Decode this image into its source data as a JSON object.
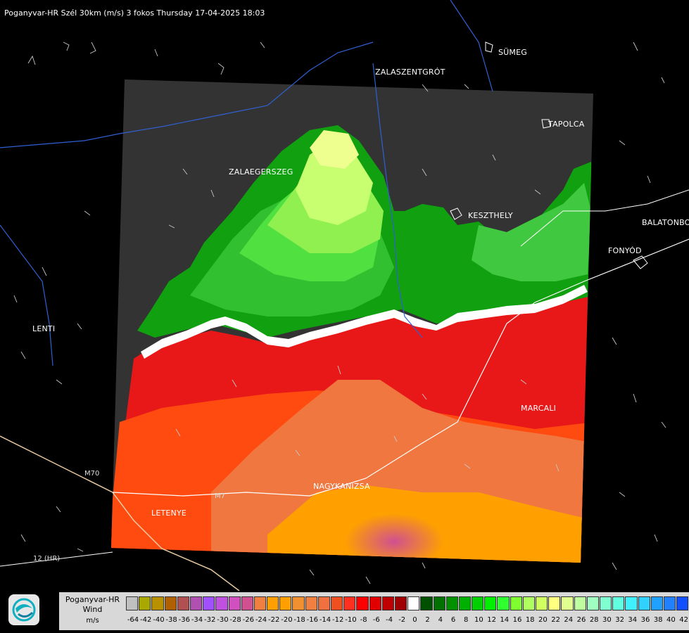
{
  "title": "Poganyvar-HR Szél 30km (m/s) 3 fokos Thursday 17-04-2025 18:03",
  "cities": [
    {
      "name": "SÜMEG"
    },
    {
      "name": "ZALASZENTGRÓT"
    },
    {
      "name": "TAPOLCA"
    },
    {
      "name": "ZALAEGERSZEG"
    },
    {
      "name": "KESZTHELY"
    },
    {
      "name": "BALATONBO"
    },
    {
      "name": "FONYÓD"
    },
    {
      "name": "LENTI"
    },
    {
      "name": "MARCALI"
    },
    {
      "name": "NAGYKANIZSA"
    },
    {
      "name": "LETENYE"
    }
  ],
  "roads": [
    {
      "name": "12 (HR)"
    },
    {
      "name": "M7"
    },
    {
      "name": "M70"
    }
  ],
  "legend": {
    "line1": "Poganyvar-HR",
    "line2": "Wind",
    "line3": "m/s",
    "colors": [
      "#c0c0c0",
      "#a8a800",
      "#b89000",
      "#b06000",
      "#b05050",
      "#b050b0",
      "#a050ff",
      "#c050e0",
      "#d050c0",
      "#d05090",
      "#f08040",
      "#ffa000",
      "#ffa000",
      "#f09030",
      "#f08040",
      "#f07040",
      "#f05020",
      "#ff3020",
      "#ff0000",
      "#e00000",
      "#c00000",
      "#a00000",
      "#ffffff",
      "#005000",
      "#007000",
      "#009000",
      "#00b000",
      "#00d000",
      "#00f000",
      "#30ff30",
      "#80ff30",
      "#b0ff60",
      "#d0ff60",
      "#ffff80",
      "#e0ff90",
      "#c0ffa0",
      "#a0ffc0",
      "#80ffd0",
      "#60ffe0",
      "#40f0ff",
      "#30d0ff",
      "#20a0ff",
      "#2080ff",
      "#1050ff",
      "#0030ff"
    ],
    "ticks": [
      "-64",
      "-42",
      "-40",
      "-38",
      "-36",
      "-34",
      "-32",
      "-30",
      "-28",
      "-26",
      "-24",
      "-22",
      "-20",
      "-18",
      "-16",
      "-14",
      "-12",
      "-10",
      "-8",
      "-6",
      "-4",
      "-2",
      "0",
      "2",
      "4",
      "6",
      "8",
      "10",
      "12",
      "14",
      "16",
      "18",
      "20",
      "22",
      "24",
      "26",
      "28",
      "30",
      "32",
      "34",
      "36",
      "38",
      "40",
      "42"
    ]
  }
}
